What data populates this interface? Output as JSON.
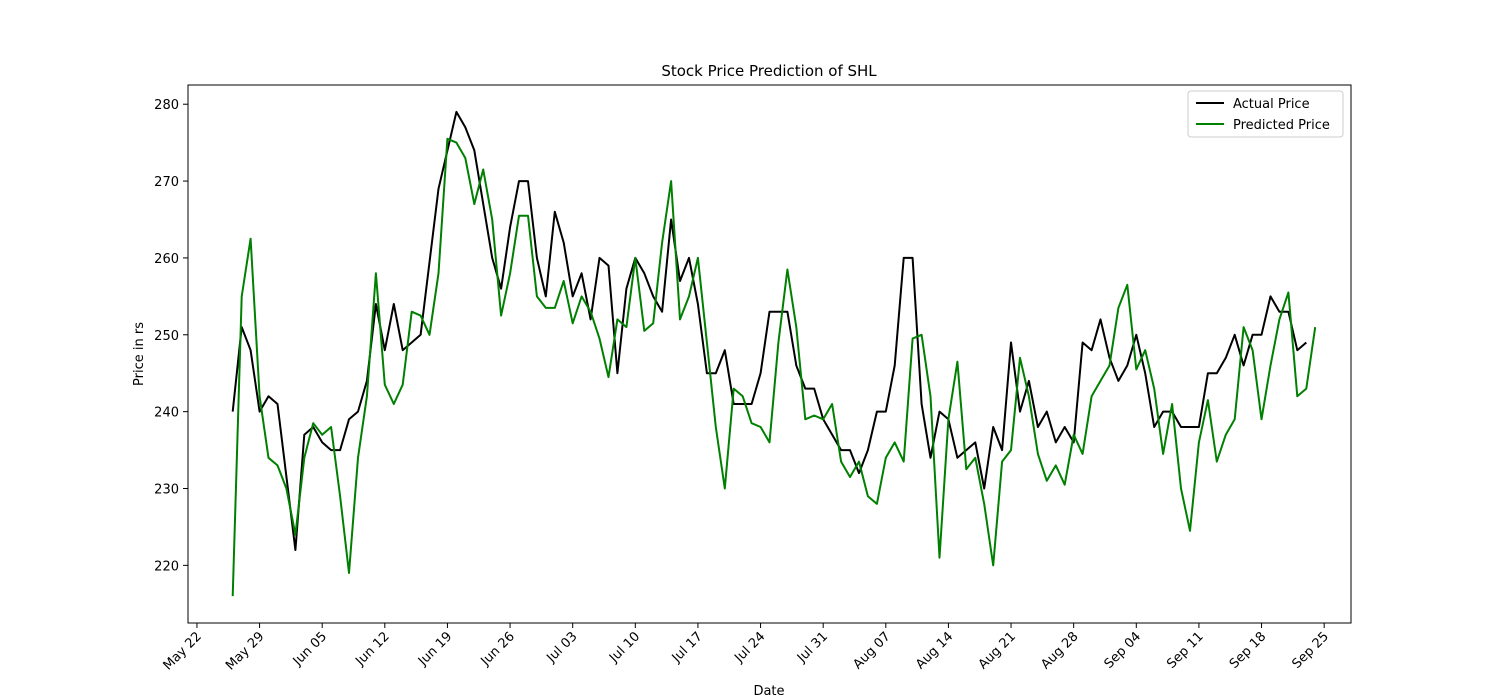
{
  "chart_data": {
    "type": "line",
    "title": "Stock Price Prediction of SHL",
    "xlabel": "Date",
    "ylabel": "Price in rs",
    "x_start": "2023-05-26",
    "xlim": [
      "2023-05-21",
      "2023-09-28"
    ],
    "ylim": [
      212.5,
      282.5
    ],
    "x_ticks": [
      {
        "label": "May 22",
        "date": "2023-05-22"
      },
      {
        "label": "May 29",
        "date": "2023-05-29"
      },
      {
        "label": "Jun 05",
        "date": "2023-06-05"
      },
      {
        "label": "Jun 12",
        "date": "2023-06-12"
      },
      {
        "label": "Jun 19",
        "date": "2023-06-19"
      },
      {
        "label": "Jun 26",
        "date": "2023-06-26"
      },
      {
        "label": "Jul 03",
        "date": "2023-07-03"
      },
      {
        "label": "Jul 10",
        "date": "2023-07-10"
      },
      {
        "label": "Jul 17",
        "date": "2023-07-17"
      },
      {
        "label": "Jul 24",
        "date": "2023-07-24"
      },
      {
        "label": "Jul 31",
        "date": "2023-07-31"
      },
      {
        "label": "Aug 07",
        "date": "2023-08-07"
      },
      {
        "label": "Aug 14",
        "date": "2023-08-14"
      },
      {
        "label": "Aug 21",
        "date": "2023-08-21"
      },
      {
        "label": "Aug 28",
        "date": "2023-08-28"
      },
      {
        "label": "Sep 04",
        "date": "2023-09-04"
      },
      {
        "label": "Sep 11",
        "date": "2023-09-11"
      },
      {
        "label": "Sep 18",
        "date": "2023-09-18"
      },
      {
        "label": "Sep 25",
        "date": "2023-09-25"
      }
    ],
    "y_ticks": [
      220,
      230,
      240,
      250,
      260,
      270,
      280
    ],
    "grid": false,
    "legend_position": "top-right",
    "series": [
      {
        "name": "Actual Price",
        "color": "#000000",
        "points": [
          [
            "2023-05-26",
            240
          ],
          [
            "2023-05-27",
            251
          ],
          [
            "2023-05-28",
            248
          ],
          [
            "2023-05-29",
            240
          ],
          [
            "2023-05-30",
            242
          ],
          [
            "2023-05-31",
            241
          ],
          [
            "2023-06-02",
            222
          ],
          [
            "2023-06-03",
            237
          ],
          [
            "2023-06-04",
            238
          ],
          [
            "2023-06-05",
            236
          ],
          [
            "2023-06-06",
            235
          ],
          [
            "2023-06-07",
            235
          ],
          [
            "2023-06-08",
            239
          ],
          [
            "2023-06-09",
            240
          ],
          [
            "2023-06-10",
            244
          ],
          [
            "2023-06-11",
            254
          ],
          [
            "2023-06-12",
            248
          ],
          [
            "2023-06-13",
            254
          ],
          [
            "2023-06-14",
            248
          ],
          [
            "2023-06-16",
            250
          ],
          [
            "2023-06-18",
            269
          ],
          [
            "2023-06-20",
            279
          ],
          [
            "2023-06-21",
            277
          ],
          [
            "2023-06-22",
            274
          ],
          [
            "2023-06-24",
            260
          ],
          [
            "2023-06-25",
            256
          ],
          [
            "2023-06-26",
            264
          ],
          [
            "2023-06-27",
            270
          ],
          [
            "2023-06-28",
            270
          ],
          [
            "2023-06-29",
            260
          ],
          [
            "2023-06-30",
            255
          ],
          [
            "2023-07-01",
            266
          ],
          [
            "2023-07-02",
            262
          ],
          [
            "2023-07-03",
            255
          ],
          [
            "2023-07-04",
            258
          ],
          [
            "2023-07-05",
            252
          ],
          [
            "2023-07-06",
            260
          ],
          [
            "2023-07-07",
            259
          ],
          [
            "2023-07-08",
            245
          ],
          [
            "2023-07-09",
            256
          ],
          [
            "2023-07-10",
            260
          ],
          [
            "2023-07-11",
            258
          ],
          [
            "2023-07-12",
            255
          ],
          [
            "2023-07-13",
            253
          ],
          [
            "2023-07-14",
            265
          ],
          [
            "2023-07-15",
            257
          ],
          [
            "2023-07-16",
            260
          ],
          [
            "2023-07-17",
            254
          ],
          [
            "2023-07-18",
            245
          ],
          [
            "2023-07-19",
            245
          ],
          [
            "2023-07-20",
            248
          ],
          [
            "2023-07-21",
            241
          ],
          [
            "2023-07-23",
            241
          ],
          [
            "2023-07-24",
            245
          ],
          [
            "2023-07-25",
            253
          ],
          [
            "2023-07-27",
            253
          ],
          [
            "2023-07-28",
            246
          ],
          [
            "2023-07-29",
            243
          ],
          [
            "2023-07-30",
            243
          ],
          [
            "2023-07-31",
            239
          ],
          [
            "2023-08-02",
            235
          ],
          [
            "2023-08-03",
            235
          ],
          [
            "2023-08-04",
            232
          ],
          [
            "2023-08-05",
            235
          ],
          [
            "2023-08-06",
            240
          ],
          [
            "2023-08-07",
            240
          ],
          [
            "2023-08-08",
            246
          ],
          [
            "2023-08-09",
            260
          ],
          [
            "2023-08-10",
            260
          ],
          [
            "2023-08-11",
            241
          ],
          [
            "2023-08-12",
            234
          ],
          [
            "2023-08-13",
            240
          ],
          [
            "2023-08-14",
            239
          ],
          [
            "2023-08-15",
            234
          ],
          [
            "2023-08-17",
            236
          ],
          [
            "2023-08-18",
            230
          ],
          [
            "2023-08-19",
            238
          ],
          [
            "2023-08-20",
            235
          ],
          [
            "2023-08-21",
            249
          ],
          [
            "2023-08-22",
            240
          ],
          [
            "2023-08-23",
            244
          ],
          [
            "2023-08-24",
            238
          ],
          [
            "2023-08-25",
            240
          ],
          [
            "2023-08-26",
            236
          ],
          [
            "2023-08-27",
            238
          ],
          [
            "2023-08-28",
            236
          ],
          [
            "2023-08-29",
            249
          ],
          [
            "2023-08-30",
            248
          ],
          [
            "2023-08-31",
            252
          ],
          [
            "2023-09-01",
            247
          ],
          [
            "2023-09-02",
            244
          ],
          [
            "2023-09-03",
            246
          ],
          [
            "2023-09-04",
            250
          ],
          [
            "2023-09-05",
            245
          ],
          [
            "2023-09-06",
            238
          ],
          [
            "2023-09-07",
            240
          ],
          [
            "2023-09-08",
            240
          ],
          [
            "2023-09-09",
            238
          ],
          [
            "2023-09-11",
            238
          ],
          [
            "2023-09-12",
            245
          ],
          [
            "2023-09-13",
            245
          ],
          [
            "2023-09-14",
            247
          ],
          [
            "2023-09-15",
            250
          ],
          [
            "2023-09-16",
            246
          ],
          [
            "2023-09-17",
            250
          ],
          [
            "2023-09-18",
            250
          ],
          [
            "2023-09-19",
            255
          ],
          [
            "2023-09-20",
            253
          ],
          [
            "2023-09-21",
            253
          ],
          [
            "2023-09-22",
            248
          ],
          [
            "2023-09-23",
            249
          ]
        ]
      },
      {
        "name": "Predicted Price",
        "color": "#008000",
        "points": [
          [
            "2023-05-26",
            216
          ],
          [
            "2023-05-27",
            255
          ],
          [
            "2023-05-28",
            262.5
          ],
          [
            "2023-05-29",
            242
          ],
          [
            "2023-05-30",
            234
          ],
          [
            "2023-05-31",
            233
          ],
          [
            "2023-06-01",
            230
          ],
          [
            "2023-06-02",
            224
          ],
          [
            "2023-06-03",
            234
          ],
          [
            "2023-06-04",
            238.5
          ],
          [
            "2023-06-05",
            237
          ],
          [
            "2023-06-06",
            238
          ],
          [
            "2023-06-07",
            229
          ],
          [
            "2023-06-08",
            219
          ],
          [
            "2023-06-09",
            234
          ],
          [
            "2023-06-10",
            242
          ],
          [
            "2023-06-11",
            258
          ],
          [
            "2023-06-12",
            243.5
          ],
          [
            "2023-06-13",
            241
          ],
          [
            "2023-06-14",
            243.5
          ],
          [
            "2023-06-15",
            253
          ],
          [
            "2023-06-16",
            252.5
          ],
          [
            "2023-06-17",
            250
          ],
          [
            "2023-06-18",
            258
          ],
          [
            "2023-06-19",
            275.5
          ],
          [
            "2023-06-20",
            275
          ],
          [
            "2023-06-21",
            273
          ],
          [
            "2023-06-22",
            267
          ],
          [
            "2023-06-23",
            271.5
          ],
          [
            "2023-06-24",
            265
          ],
          [
            "2023-06-25",
            252.5
          ],
          [
            "2023-06-26",
            258
          ],
          [
            "2023-06-27",
            265.5
          ],
          [
            "2023-06-28",
            265.5
          ],
          [
            "2023-06-29",
            255
          ],
          [
            "2023-06-30",
            253.5
          ],
          [
            "2023-07-01",
            253.5
          ],
          [
            "2023-07-02",
            257
          ],
          [
            "2023-07-03",
            251.5
          ],
          [
            "2023-07-04",
            255
          ],
          [
            "2023-07-05",
            253
          ],
          [
            "2023-07-06",
            249.5
          ],
          [
            "2023-07-07",
            244.5
          ],
          [
            "2023-07-08",
            252
          ],
          [
            "2023-07-09",
            251
          ],
          [
            "2023-07-10",
            260
          ],
          [
            "2023-07-11",
            250.5
          ],
          [
            "2023-07-12",
            251.5
          ],
          [
            "2023-07-13",
            262
          ],
          [
            "2023-07-14",
            270
          ],
          [
            "2023-07-15",
            252
          ],
          [
            "2023-07-16",
            255
          ],
          [
            "2023-07-17",
            260
          ],
          [
            "2023-07-18",
            249
          ],
          [
            "2023-07-19",
            238
          ],
          [
            "2023-07-20",
            230
          ],
          [
            "2023-07-21",
            243
          ],
          [
            "2023-07-22",
            242
          ],
          [
            "2023-07-23",
            238.5
          ],
          [
            "2023-07-24",
            238
          ],
          [
            "2023-07-25",
            236
          ],
          [
            "2023-07-26",
            249
          ],
          [
            "2023-07-27",
            258.5
          ],
          [
            "2023-07-28",
            251
          ],
          [
            "2023-07-29",
            239
          ],
          [
            "2023-07-30",
            239.5
          ],
          [
            "2023-07-31",
            239
          ],
          [
            "2023-08-01",
            241
          ],
          [
            "2023-08-02",
            233.5
          ],
          [
            "2023-08-03",
            231.5
          ],
          [
            "2023-08-04",
            233.5
          ],
          [
            "2023-08-05",
            229
          ],
          [
            "2023-08-06",
            228
          ],
          [
            "2023-08-07",
            234
          ],
          [
            "2023-08-08",
            236
          ],
          [
            "2023-08-09",
            233.5
          ],
          [
            "2023-08-10",
            249.5
          ],
          [
            "2023-08-11",
            250
          ],
          [
            "2023-08-12",
            242
          ],
          [
            "2023-08-13",
            221
          ],
          [
            "2023-08-14",
            239
          ],
          [
            "2023-08-15",
            246.5
          ],
          [
            "2023-08-16",
            232.5
          ],
          [
            "2023-08-17",
            234
          ],
          [
            "2023-08-18",
            228
          ],
          [
            "2023-08-19",
            220
          ],
          [
            "2023-08-20",
            233.5
          ],
          [
            "2023-08-21",
            235
          ],
          [
            "2023-08-22",
            247
          ],
          [
            "2023-08-23",
            242
          ],
          [
            "2023-08-24",
            234.5
          ],
          [
            "2023-08-25",
            231
          ],
          [
            "2023-08-26",
            233
          ],
          [
            "2023-08-27",
            230.5
          ],
          [
            "2023-08-28",
            237
          ],
          [
            "2023-08-29",
            234.5
          ],
          [
            "2023-08-30",
            242
          ],
          [
            "2023-08-31",
            244
          ],
          [
            "2023-09-01",
            246
          ],
          [
            "2023-09-02",
            253.5
          ],
          [
            "2023-09-03",
            256.5
          ],
          [
            "2023-09-04",
            245.5
          ],
          [
            "2023-09-05",
            248
          ],
          [
            "2023-09-06",
            243
          ],
          [
            "2023-09-07",
            234.5
          ],
          [
            "2023-09-08",
            241
          ],
          [
            "2023-09-09",
            230
          ],
          [
            "2023-09-10",
            224.5
          ],
          [
            "2023-09-11",
            236
          ],
          [
            "2023-09-12",
            241.5
          ],
          [
            "2023-09-13",
            233.5
          ],
          [
            "2023-09-14",
            237
          ],
          [
            "2023-09-15",
            239
          ],
          [
            "2023-09-16",
            251
          ],
          [
            "2023-09-17",
            248
          ],
          [
            "2023-09-18",
            239
          ],
          [
            "2023-09-19",
            246
          ],
          [
            "2023-09-20",
            252
          ],
          [
            "2023-09-21",
            255.5
          ],
          [
            "2023-09-22",
            242
          ],
          [
            "2023-09-23",
            243
          ],
          [
            "2023-09-24",
            251
          ]
        ]
      }
    ]
  }
}
